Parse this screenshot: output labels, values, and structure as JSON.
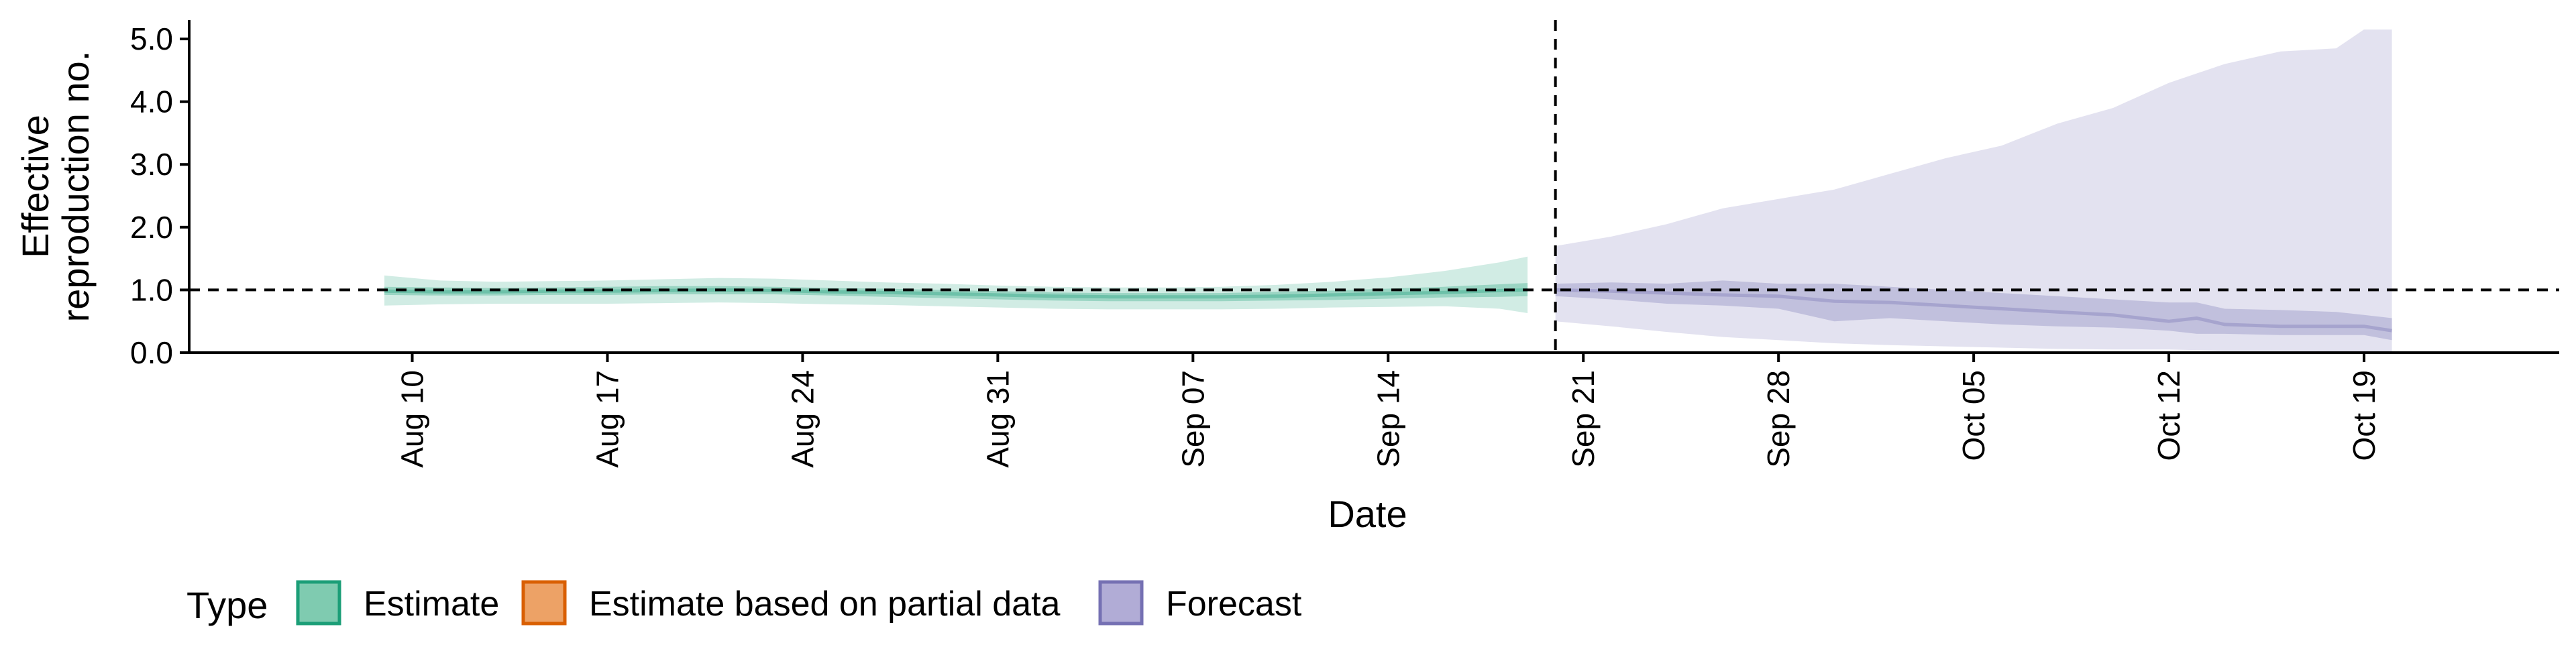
{
  "chart_data": {
    "type": "area",
    "xlabel": "Date",
    "ylabel": [
      "Effective",
      "reproduction no."
    ],
    "ylim": [
      0,
      5.3
    ],
    "y_ticks": [
      0.0,
      1.0,
      2.0,
      3.0,
      4.0,
      5.0
    ],
    "y_tick_labels": [
      "0.0",
      "1.0",
      "2.0",
      "3.0",
      "4.0",
      "5.0"
    ],
    "xlim": [
      "2020-08-02",
      "2020-10-26"
    ],
    "x_ticks": [
      "2020-08-10",
      "2020-08-17",
      "2020-08-24",
      "2020-08-31",
      "2020-09-07",
      "2020-09-14",
      "2020-09-21",
      "2020-09-28",
      "2020-10-05",
      "2020-10-12",
      "2020-10-19"
    ],
    "x_tick_labels": [
      "Aug 10",
      "Aug 17",
      "Aug 24",
      "Aug 31",
      "Sep 07",
      "Sep 14",
      "Sep 21",
      "Sep 28",
      "Oct 05",
      "Oct 12",
      "Oct 19"
    ],
    "reference_line_y": 1.0,
    "forecast_start_line_x": "2020-09-20",
    "legend": {
      "title": "Type",
      "position": "bottom",
      "items": [
        {
          "label": "Estimate",
          "fill": "#7fcbb0",
          "stroke": "#1b9e77"
        },
        {
          "label": "Estimate based on partial data",
          "fill": "#eda266",
          "stroke": "#d95f02"
        },
        {
          "label": "Forecast",
          "fill": "#b1acd6",
          "stroke": "#7570b3"
        }
      ]
    },
    "series": [
      {
        "name": "Estimate",
        "color": "#1b9e77",
        "x": [
          "2020-08-09",
          "2020-08-11",
          "2020-08-13",
          "2020-08-15",
          "2020-08-17",
          "2020-08-19",
          "2020-08-21",
          "2020-08-23",
          "2020-08-25",
          "2020-08-27",
          "2020-08-29",
          "2020-08-31",
          "2020-09-02",
          "2020-09-04",
          "2020-09-06",
          "2020-09-08",
          "2020-09-10",
          "2020-09-12",
          "2020-09-14",
          "2020-09-16",
          "2020-09-18",
          "2020-09-19"
        ],
        "median": [
          0.98,
          0.97,
          0.97,
          0.98,
          0.98,
          0.99,
          1.0,
          0.99,
          0.97,
          0.96,
          0.94,
          0.92,
          0.9,
          0.89,
          0.89,
          0.89,
          0.9,
          0.92,
          0.94,
          0.96,
          0.99,
          1.0
        ],
        "lower_50": [
          0.92,
          0.91,
          0.91,
          0.92,
          0.92,
          0.93,
          0.93,
          0.93,
          0.91,
          0.89,
          0.87,
          0.85,
          0.83,
          0.82,
          0.82,
          0.82,
          0.83,
          0.84,
          0.86,
          0.88,
          0.89,
          0.9
        ],
        "upper_50": [
          1.05,
          1.04,
          1.03,
          1.04,
          1.05,
          1.06,
          1.06,
          1.05,
          1.03,
          1.02,
          1.0,
          0.98,
          0.96,
          0.95,
          0.95,
          0.95,
          0.97,
          0.99,
          1.02,
          1.05,
          1.09,
          1.11
        ],
        "lower_90": [
          0.75,
          0.77,
          0.78,
          0.78,
          0.78,
          0.79,
          0.8,
          0.79,
          0.77,
          0.76,
          0.74,
          0.72,
          0.7,
          0.69,
          0.69,
          0.69,
          0.7,
          0.72,
          0.73,
          0.74,
          0.7,
          0.63
        ],
        "upper_90": [
          1.23,
          1.15,
          1.13,
          1.14,
          1.15,
          1.17,
          1.19,
          1.18,
          1.15,
          1.12,
          1.1,
          1.07,
          1.05,
          1.04,
          1.04,
          1.05,
          1.08,
          1.13,
          1.2,
          1.3,
          1.44,
          1.53
        ]
      },
      {
        "name": "Forecast",
        "color": "#7570b3",
        "x": [
          "2020-09-20",
          "2020-09-22",
          "2020-09-24",
          "2020-09-26",
          "2020-09-28",
          "2020-09-30",
          "2020-10-02",
          "2020-10-04",
          "2020-10-06",
          "2020-10-08",
          "2020-10-10",
          "2020-10-12",
          "2020-10-13",
          "2020-10-14",
          "2020-10-16",
          "2020-10-18",
          "2020-10-19",
          "2020-10-20"
        ],
        "median": [
          1.0,
          0.98,
          0.95,
          0.92,
          0.9,
          0.82,
          0.8,
          0.75,
          0.7,
          0.65,
          0.6,
          0.5,
          0.55,
          0.45,
          0.42,
          0.42,
          0.42,
          0.35
        ],
        "lower_50": [
          0.9,
          0.85,
          0.78,
          0.75,
          0.7,
          0.5,
          0.55,
          0.5,
          0.45,
          0.42,
          0.4,
          0.35,
          0.3,
          0.3,
          0.28,
          0.28,
          0.28,
          0.2
        ],
        "upper_50": [
          1.1,
          1.12,
          1.1,
          1.15,
          1.1,
          1.1,
          1.05,
          1.0,
          0.95,
          0.9,
          0.85,
          0.8,
          0.8,
          0.7,
          0.68,
          0.65,
          0.6,
          0.55
        ],
        "lower_90": [
          0.5,
          0.42,
          0.33,
          0.25,
          0.2,
          0.15,
          0.12,
          0.1,
          0.08,
          0.06,
          0.05,
          0.05,
          0.04,
          0.03,
          0.03,
          0.02,
          0.02,
          0.02
        ],
        "upper_90": [
          1.7,
          1.85,
          2.05,
          2.3,
          2.45,
          2.6,
          2.85,
          3.1,
          3.3,
          3.65,
          3.9,
          4.3,
          4.45,
          4.6,
          4.8,
          4.85,
          5.15,
          5.15
        ]
      }
    ]
  }
}
